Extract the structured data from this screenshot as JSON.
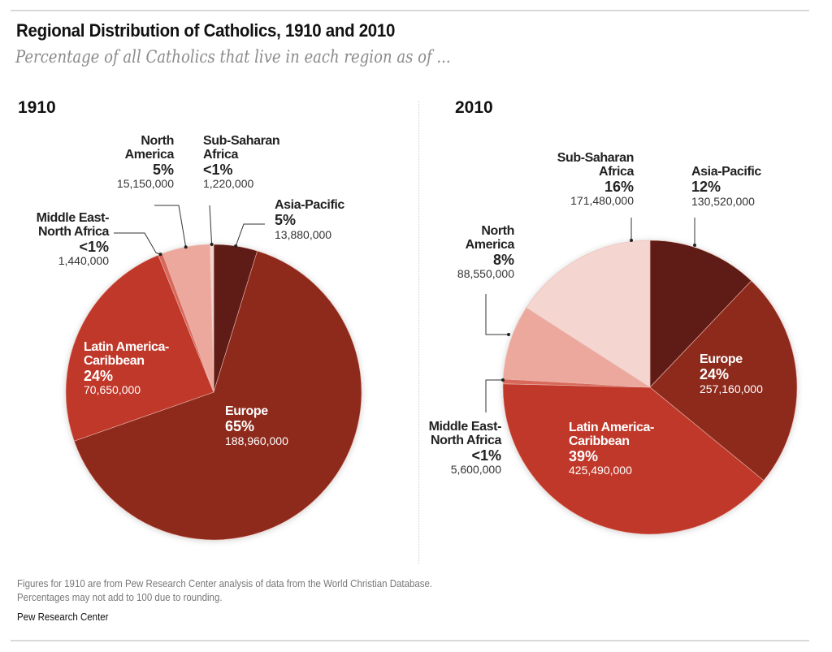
{
  "title": "Regional Distribution of Catholics, 1910 and 2010",
  "subtitle": "Percentage of all Catholics that live in each region as of ...",
  "notes": [
    "Figures for 1910 are from Pew Research Center analysis of data from the World Christian Database.",
    "Percentages may not add to 100 due to rounding."
  ],
  "source": "Pew Research Center",
  "colors": {
    "asia_pacific": "#5e1a12",
    "europe": "#8e2a1e",
    "latin_america": "#c0392b",
    "middle_east": "#d9685a",
    "north_america": "#eda89e",
    "sub_saharan": "#f5d5cf"
  },
  "chart_data": [
    {
      "type": "pie",
      "title": "1910",
      "start": "12 o'clock",
      "direction": "clockwise",
      "slices": [
        {
          "key": "asia_pacific",
          "name": "Asia-Pacific",
          "pct_label": "5%",
          "count": "13,880,000",
          "value": 13880000
        },
        {
          "key": "europe",
          "name": "Europe",
          "pct_label": "65%",
          "count": "188,960,000",
          "value": 188960000
        },
        {
          "key": "latin_america",
          "name": "Latin America-Caribbean",
          "name_lines": [
            "Latin America-",
            "Caribbean"
          ],
          "pct_label": "24%",
          "count": "70,650,000",
          "value": 70650000
        },
        {
          "key": "middle_east",
          "name": "Middle East-North Africa",
          "name_lines": [
            "Middle East-",
            "North Africa"
          ],
          "pct_label": "<1%",
          "count": "1,440,000",
          "value": 1440000
        },
        {
          "key": "north_america",
          "name": "North America",
          "name_lines": [
            "North",
            "America"
          ],
          "pct_label": "5%",
          "count": "15,150,000",
          "value": 15150000
        },
        {
          "key": "sub_saharan",
          "name": "Sub-Saharan Africa",
          "name_lines": [
            "Sub-Saharan",
            "Africa"
          ],
          "pct_label": "<1%",
          "count": "1,220,000",
          "value": 1220000
        }
      ]
    },
    {
      "type": "pie",
      "title": "2010",
      "start": "12 o'clock",
      "direction": "clockwise",
      "slices": [
        {
          "key": "asia_pacific",
          "name": "Asia-Pacific",
          "pct_label": "12%",
          "count": "130,520,000",
          "value": 130520000
        },
        {
          "key": "europe",
          "name": "Europe",
          "pct_label": "24%",
          "count": "257,160,000",
          "value": 257160000
        },
        {
          "key": "latin_america",
          "name": "Latin America-Caribbean",
          "name_lines": [
            "Latin America-",
            "Caribbean"
          ],
          "pct_label": "39%",
          "count": "425,490,000",
          "value": 425490000
        },
        {
          "key": "middle_east",
          "name": "Middle East-North Africa",
          "name_lines": [
            "Middle East-",
            "North Africa"
          ],
          "pct_label": "<1%",
          "count": "5,600,000",
          "value": 5600000
        },
        {
          "key": "north_america",
          "name": "North America",
          "name_lines": [
            "North",
            "America"
          ],
          "pct_label": "8%",
          "count": "88,550,000",
          "value": 88550000
        },
        {
          "key": "sub_saharan",
          "name": "Sub-Saharan Africa",
          "name_lines": [
            "Sub-Saharan",
            "Africa"
          ],
          "pct_label": "16%",
          "count": "171,480,000",
          "value": 171480000
        }
      ]
    }
  ]
}
